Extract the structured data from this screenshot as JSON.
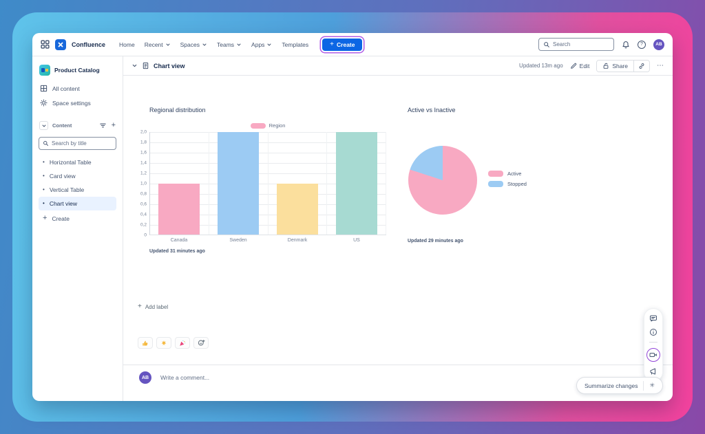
{
  "navbar": {
    "brand": "Confluence",
    "items": [
      {
        "label": "Home",
        "chevron": false
      },
      {
        "label": "Recent",
        "chevron": true
      },
      {
        "label": "Spaces",
        "chevron": true
      },
      {
        "label": "Teams",
        "chevron": true
      },
      {
        "label": "Apps",
        "chevron": true
      },
      {
        "label": "Templates",
        "chevron": false
      }
    ],
    "create_label": "Create",
    "search_placeholder": "Search",
    "avatar_initials": "AB"
  },
  "sidebar": {
    "space_name": "Product Catalog",
    "nav_items": [
      {
        "label": "All content",
        "icon": "grid-icon"
      },
      {
        "label": "Space settings",
        "icon": "gear-icon"
      }
    ],
    "section_label": "Content",
    "search_placeholder": "Search by title",
    "pages": [
      {
        "label": "Horizontal Table",
        "selected": false
      },
      {
        "label": "Card view",
        "selected": false
      },
      {
        "label": "Vertical Table",
        "selected": false
      },
      {
        "label": "Chart view",
        "selected": true
      }
    ],
    "create_label": "Create"
  },
  "content_header": {
    "title": "Chart view",
    "updated": "Updated 13m ago",
    "edit_label": "Edit",
    "share_label": "Share"
  },
  "chart_data": [
    {
      "type": "bar",
      "title": "Regional distribution",
      "legend": [
        {
          "label": "Region",
          "color": "#f8a9c2"
        }
      ],
      "legend_position": "top",
      "categories": [
        "Canada",
        "Sweden",
        "Denmark",
        "US"
      ],
      "values": [
        1,
        2,
        1,
        2
      ],
      "bar_colors": [
        "#f8a9c2",
        "#9ccbf3",
        "#fbdf9d",
        "#a7dad2"
      ],
      "ylim": [
        0,
        2
      ],
      "ytick_labels": [
        "2,0",
        "1,8",
        "1,6",
        "1,4",
        "1,2",
        "1,0",
        "0,8",
        "0,6",
        "0,4",
        "0,2",
        "0"
      ],
      "grid": true,
      "updated": "Updated 31 minutes ago"
    },
    {
      "type": "pie",
      "title": "Active vs Inactive",
      "slices": [
        {
          "label": "Active",
          "value": 80,
          "color": "#f8a9c2"
        },
        {
          "label": "Stopped",
          "value": 20,
          "color": "#9ccbf3"
        }
      ],
      "legend_position": "right",
      "updated": "Updated 29 minutes ago"
    }
  ],
  "footer": {
    "add_label_text": "Add label",
    "reactions": [
      "thumbs-up",
      "clap",
      "party-popper"
    ],
    "comment_avatar": "AB",
    "comment_placeholder": "Write a comment...",
    "summarize_label": "Summarize changes"
  },
  "icons": {
    "plus": "+",
    "more": "⋯",
    "help": "?",
    "sparkle": "✳",
    "bullet": "•"
  },
  "colors": {
    "accent_blue": "#0c66e4",
    "highlight_ring": "#b15ce6",
    "avatar_purple": "#6554c0",
    "selected_item_bg": "#e9f2ff"
  }
}
